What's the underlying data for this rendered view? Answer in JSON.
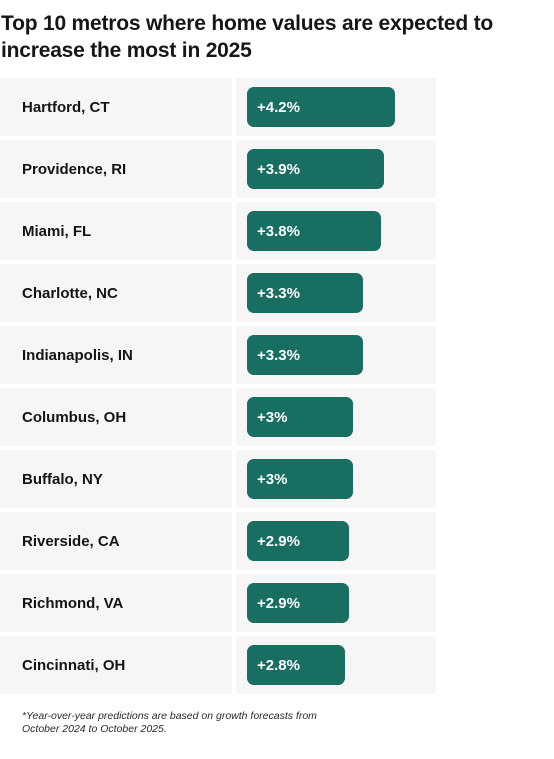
{
  "chart_data": {
    "type": "bar",
    "orientation": "horizontal",
    "title": "Top 10 metros where home values are expected to increase the most in 2025",
    "categories": [
      "Hartford, CT",
      "Providence, RI",
      "Miami, FL",
      "Charlotte, NC",
      "Indianapolis, IN",
      "Columbus, OH",
      "Buffalo, NY",
      "Riverside, CA",
      "Richmond, VA",
      "Cincinnati, OH"
    ],
    "values": [
      4.2,
      3.9,
      3.8,
      3.3,
      3.3,
      3.0,
      3.0,
      2.9,
      2.9,
      2.8
    ],
    "value_labels": [
      "+4.2%",
      "+3.9%",
      "+3.8%",
      "+3.3%",
      "+3.3%",
      "+3%",
      "+3%",
      "+2.9%",
      "+2.9%",
      "+2.8%"
    ],
    "bar_color": "#176e61",
    "row_background": "#f6f6f6",
    "grid": false,
    "legend": "none",
    "footnote": "*Year-over-year predictions are based on growth forecasts from October 2024 to October 2025."
  }
}
